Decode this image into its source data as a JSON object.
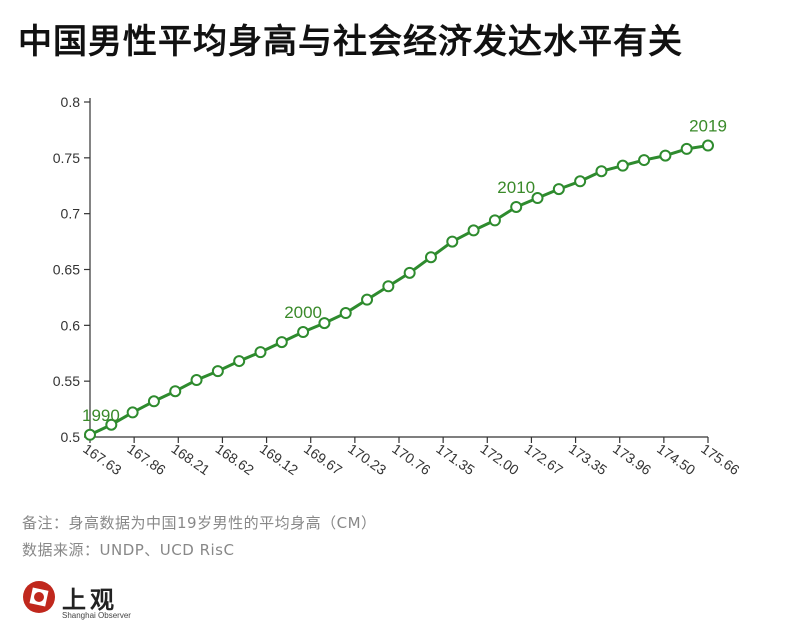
{
  "title": "中国男性平均身高与社会经济发达水平有关",
  "notes": {
    "remark": "备注：身高数据为中国19岁男性的平均身高（CM）",
    "source": "数据来源：UNDP、UCD RisC"
  },
  "logo": {
    "name": "上观",
    "subtitle": "Shanghai Observer"
  },
  "colors": {
    "line": "#2e8b2e",
    "label": "#3a8a2a",
    "axis": "#333333",
    "text": "#333333"
  },
  "chart_data": {
    "type": "line",
    "title": "中国男性平均身高与社会经济发达水平有关",
    "xlabel": "",
    "ylabel": "",
    "x_ticks": [
      "167.63",
      "167.86",
      "168.21",
      "168.62",
      "169.12",
      "169.67",
      "170.23",
      "170.76",
      "171.35",
      "172.00",
      "172.67",
      "173.35",
      "173.96",
      "174.50",
      "175.66"
    ],
    "y_ticks": [
      "0.5",
      "0.55",
      "0.6",
      "0.65",
      "0.7",
      "0.75",
      "0.8"
    ],
    "ylim": [
      0.5,
      0.8
    ],
    "grid": false,
    "series": [
      {
        "values": [
          0.502,
          0.511,
          0.522,
          0.532,
          0.541,
          0.551,
          0.559,
          0.568,
          0.576,
          0.585,
          0.594,
          0.602,
          0.611,
          0.623,
          0.635,
          0.647,
          0.661,
          0.675,
          0.685,
          0.694,
          0.706,
          0.714,
          0.722,
          0.729,
          0.738,
          0.743,
          0.748,
          0.752,
          0.758,
          0.761
        ]
      }
    ],
    "annotations": [
      {
        "text": "1990",
        "index": 0
      },
      {
        "text": "2000",
        "index": 10
      },
      {
        "text": "2010",
        "index": 20
      },
      {
        "text": "2019",
        "index": 29
      }
    ]
  }
}
